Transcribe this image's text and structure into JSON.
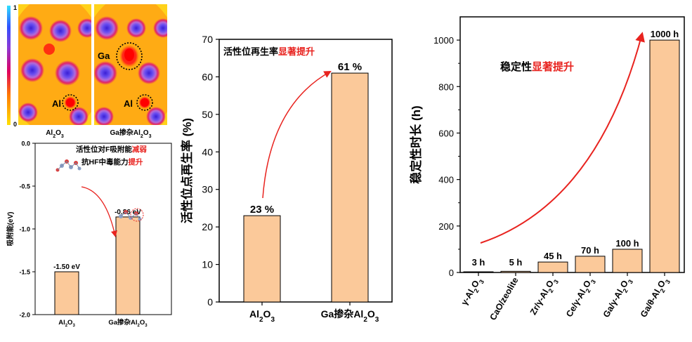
{
  "colors": {
    "bar_fill": "#fbc99a",
    "bar_stroke": "#000000",
    "highlight": "#e8231f",
    "arrow": "#e8231f",
    "text": "#000000"
  },
  "maps": {
    "colorbar_max": "1",
    "colorbar_min": "0",
    "left_label": "Al2O3",
    "right_label": "Ga掺杂Al2O3",
    "right_ga_label": "Ga",
    "right_al_label": "Al",
    "left_al_label": "Al"
  },
  "chart_data": [
    {
      "type": "bar",
      "categories": [
        "Al2O3",
        "Ga掺杂Al2O3"
      ],
      "values": [
        -1.5,
        -0.86
      ],
      "value_labels": [
        "-1.50 eV",
        "-0.86 eV"
      ],
      "ylabel": "吸附能(eV)",
      "ylim": [
        -2.0,
        0.0
      ],
      "yticks": [
        "-2.0",
        "-1.5",
        "-1.0",
        "-0.5",
        "0.0"
      ],
      "ytick_values": [
        -2.0,
        -1.5,
        -1.0,
        -0.5,
        0.0
      ],
      "annotation_line1_a": "活性位对F吸附能",
      "annotation_line1_b": "减弱",
      "annotation_line2_a": "抗HF中毒能力",
      "annotation_line2_b": "提升",
      "grid": false
    },
    {
      "type": "bar",
      "categories": [
        "Al2O3",
        "Ga掺杂Al2O3"
      ],
      "values": [
        23,
        61
      ],
      "value_labels": [
        "23 %",
        "61 %"
      ],
      "ylabel": "活性位点再生率 (%)",
      "ylim": [
        0,
        70
      ],
      "yticks": [
        "0",
        "10",
        "20",
        "30",
        "40",
        "50",
        "60",
        "70"
      ],
      "ytick_values": [
        0,
        10,
        20,
        30,
        40,
        50,
        60,
        70
      ],
      "annotation_a": "活性位再生率",
      "annotation_b": "显著提升",
      "grid": false
    },
    {
      "type": "bar",
      "categories": [
        "γ-Al2O3",
        "CaO/zeolite",
        "Zr/γ-Al2O3",
        "Ce/γ-Al2O3",
        "Ga/γ-Al2O3",
        "Ga/θ-Al2O3"
      ],
      "values": [
        3,
        5,
        45,
        70,
        100,
        1000
      ],
      "value_labels": [
        "3 h",
        "5 h",
        "45 h",
        "70 h",
        "100 h",
        "1000 h"
      ],
      "ylabel": "稳定性时长 (h)",
      "ylim": [
        0,
        1100
      ],
      "yticks": [
        "0",
        "200",
        "400",
        "600",
        "800",
        "1000"
      ],
      "ytick_values": [
        0,
        200,
        400,
        600,
        800,
        1000
      ],
      "annotation_a": "稳定性",
      "annotation_b": "显著提升",
      "grid": false
    }
  ]
}
